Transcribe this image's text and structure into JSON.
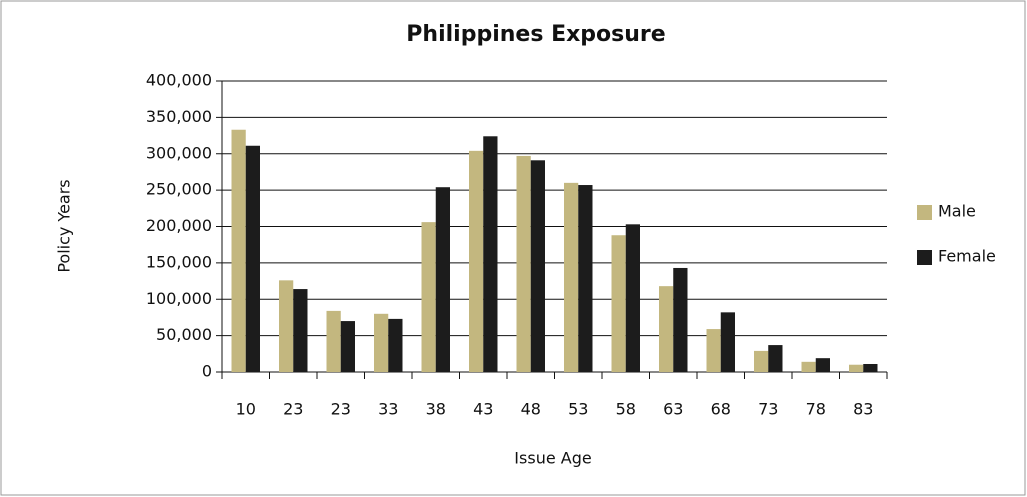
{
  "chart_data": {
    "type": "bar",
    "title": "Philippines Exposure",
    "x_label": "Issue Age",
    "y_label": "Policy Years",
    "categories": [
      "10",
      "23",
      "23",
      "33",
      "38",
      "43",
      "48",
      "53",
      "58",
      "63",
      "68",
      "73",
      "78",
      "83"
    ],
    "series": [
      {
        "name": "Male",
        "color": "#c3b77f",
        "values": [
          333000,
          126000,
          84000,
          80000,
          206000,
          304000,
          297000,
          260000,
          188000,
          118000,
          59000,
          29000,
          14000,
          10000
        ]
      },
      {
        "name": "Female",
        "color": "#1c1c1c",
        "values": [
          311000,
          114000,
          70000,
          73000,
          254000,
          324000,
          291000,
          257000,
          203000,
          143000,
          82000,
          37000,
          19000,
          11000
        ]
      }
    ],
    "ylim": [
      0,
      400000
    ],
    "yticks": [
      0,
      {
        "value": 50000,
        "label": "50,000"
      },
      {
        "value": 100000,
        "label": "100,000"
      },
      {
        "value": 150000,
        "label": "150,000"
      },
      {
        "value": 200000,
        "label": "200,000"
      },
      {
        "value": 250000,
        "label": "250,000"
      },
      {
        "value": 300000,
        "label": "300,000"
      },
      {
        "value": 350000,
        "label": "350,000"
      },
      {
        "value": 400000,
        "label": "400,000"
      }
    ],
    "grid": true,
    "legend": "right"
  }
}
